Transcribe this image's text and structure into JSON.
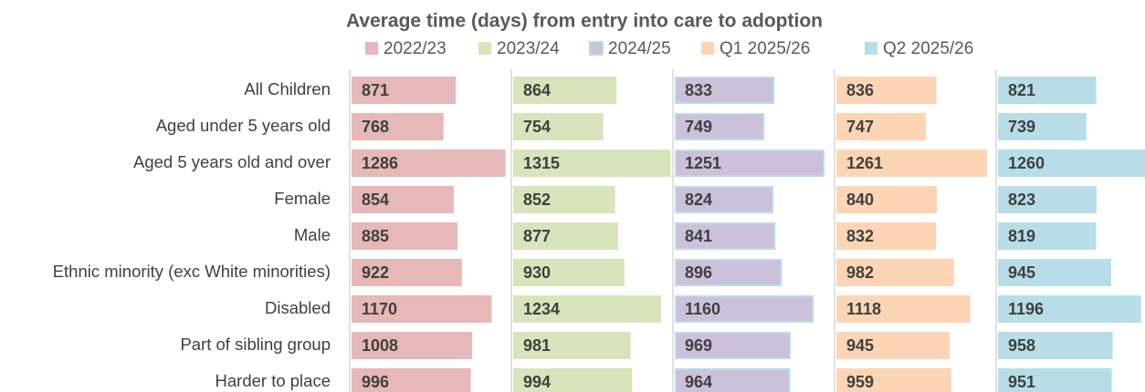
{
  "chart_data": {
    "type": "bar",
    "orientation": "horizontal",
    "title": "Average time (days) from entry into care to adoption",
    "categories": [
      "All Children",
      "Aged under 5 years old",
      "Aged 5 years old and over",
      "Female",
      "Male",
      "Ethnic minority (exc White minorities)",
      "Disabled",
      "Part of sibling group",
      "Harder to place"
    ],
    "series": [
      {
        "name": "2022/23",
        "color": "#e6b8b7",
        "values": [
          871,
          768,
          1286,
          854,
          885,
          922,
          1170,
          1008,
          996
        ]
      },
      {
        "name": "2023/24",
        "color": "#d8e4bc",
        "values": [
          864,
          754,
          1315,
          852,
          877,
          930,
          1234,
          981,
          994
        ]
      },
      {
        "name": "2024/25",
        "color": "#ccc0da",
        "edgecolor": "#b7dee8",
        "values": [
          833,
          749,
          1251,
          824,
          841,
          896,
          1160,
          969,
          964
        ]
      },
      {
        "name": "Q1 2025/26",
        "color": "#fcd5b4",
        "values": [
          836,
          747,
          1261,
          840,
          832,
          982,
          1118,
          945,
          959
        ]
      },
      {
        "name": "Q2 2025/26",
        "color": "#b7dee8",
        "values": [
          821,
          739,
          1260,
          823,
          819,
          945,
          1196,
          958,
          951
        ]
      }
    ],
    "xlim": [
      0,
      1350
    ]
  }
}
